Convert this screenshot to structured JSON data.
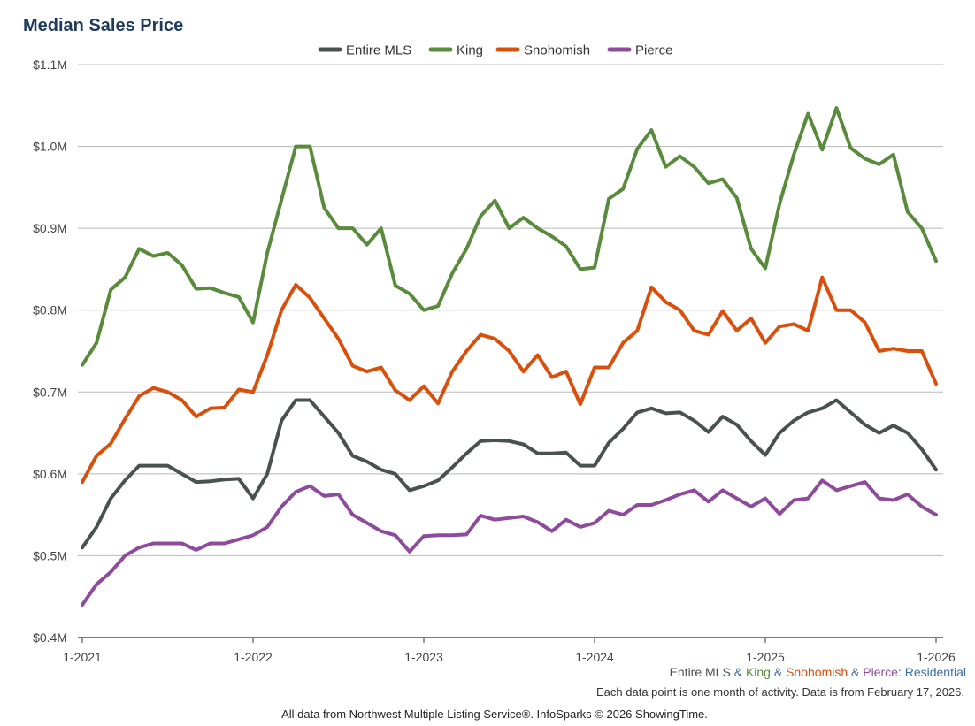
{
  "chart_data": {
    "type": "line",
    "title": "Median Sales Price",
    "xlabel": "",
    "ylabel": "",
    "ylim": [
      400000,
      1100000
    ],
    "y_ticks": [
      {
        "value": 1100000,
        "label": "$1.1M"
      },
      {
        "value": 1000000,
        "label": "$1.0M"
      },
      {
        "value": 900000,
        "label": "$0.9M"
      },
      {
        "value": 800000,
        "label": "$0.8M"
      },
      {
        "value": 700000,
        "label": "$0.7M"
      },
      {
        "value": 600000,
        "label": "$0.6M"
      },
      {
        "value": 500000,
        "label": "$0.5M"
      },
      {
        "value": 400000,
        "label": "$0.4M"
      }
    ],
    "x_ticks": [
      {
        "index": 0,
        "label": "1-2021"
      },
      {
        "index": 12,
        "label": "1-2022"
      },
      {
        "index": 24,
        "label": "1-2023"
      },
      {
        "index": 36,
        "label": "1-2024"
      },
      {
        "index": 48,
        "label": "1-2025"
      },
      {
        "index": 60,
        "label": "1-2026"
      }
    ],
    "months": 61,
    "legend_position": "top-center",
    "series": [
      {
        "name": "Entire MLS",
        "color": "#4a524f",
        "values": [
          510000,
          535000,
          570000,
          592000,
          610000,
          610000,
          610000,
          600000,
          590000,
          591000,
          593000,
          594000,
          570000,
          600000,
          665000,
          690000,
          690000,
          670000,
          650000,
          622000,
          615000,
          605000,
          600000,
          580000,
          585000,
          592000,
          608000,
          625000,
          640000,
          641000,
          640000,
          636000,
          625000,
          625000,
          626000,
          610000,
          610000,
          638000,
          655000,
          675000,
          680000,
          674000,
          675000,
          665000,
          651000,
          670000,
          660000,
          640000,
          623000,
          650000,
          665000,
          675000,
          680000,
          690000,
          675000,
          660000,
          650000,
          659000,
          650000,
          630000,
          605000
        ]
      },
      {
        "name": "King",
        "color": "#5a8a3c",
        "values": [
          733000,
          760000,
          825000,
          840000,
          875000,
          866000,
          870000,
          855000,
          826000,
          827000,
          821000,
          816000,
          785000,
          870000,
          935000,
          1000000,
          1000000,
          925000,
          900000,
          900000,
          880000,
          900000,
          830000,
          820000,
          800000,
          805000,
          845000,
          875000,
          915000,
          934000,
          900000,
          913000,
          900000,
          890000,
          878000,
          850000,
          852000,
          936000,
          948000,
          997000,
          1020000,
          975000,
          988000,
          975000,
          955000,
          960000,
          937000,
          875000,
          851000,
          930000,
          990000,
          1040000,
          996000,
          1047000,
          998000,
          985000,
          978000,
          990000,
          920000,
          900000,
          860000
        ]
      },
      {
        "name": "Snohomish",
        "color": "#d94f0c",
        "values": [
          590000,
          622000,
          637000,
          667000,
          695000,
          705000,
          700000,
          690000,
          670000,
          680000,
          681000,
          703000,
          700000,
          745000,
          800000,
          831000,
          815000,
          790000,
          765000,
          732000,
          725000,
          730000,
          702000,
          690000,
          707000,
          686000,
          725000,
          750000,
          770000,
          765000,
          750000,
          725000,
          745000,
          718000,
          725000,
          685000,
          730000,
          730000,
          760000,
          775000,
          828000,
          810000,
          800000,
          775000,
          770000,
          799000,
          775000,
          790000,
          760000,
          780000,
          783000,
          775000,
          840000,
          800000,
          800000,
          785000,
          750000,
          753000,
          750000,
          750000,
          710000
        ]
      },
      {
        "name": "Pierce",
        "color": "#8e4b9b",
        "values": [
          440000,
          465000,
          480000,
          500000,
          510000,
          515000,
          515000,
          515000,
          507000,
          515000,
          515000,
          520000,
          525000,
          535000,
          560000,
          578000,
          585000,
          573000,
          575000,
          550000,
          540000,
          530000,
          525000,
          505000,
          524000,
          525000,
          525000,
          526000,
          549000,
          544000,
          546000,
          548000,
          541000,
          530000,
          544000,
          535000,
          540000,
          555000,
          550000,
          562000,
          562000,
          568000,
          575000,
          580000,
          566000,
          580000,
          570000,
          560000,
          570000,
          551000,
          568000,
          570000,
          592000,
          580000,
          585000,
          590000,
          570000,
          568000,
          575000,
          560000,
          550000
        ]
      }
    ]
  },
  "caption": {
    "parts": [
      {
        "text": "Entire MLS",
        "color": "#4a524f"
      },
      {
        "text": " & ",
        "color": "#3a6ea5"
      },
      {
        "text": "King",
        "color": "#5a8a3c"
      },
      {
        "text": " & ",
        "color": "#3a6ea5"
      },
      {
        "text": "Snohomish",
        "color": "#d94f0c"
      },
      {
        "text": " & ",
        "color": "#3a6ea5"
      },
      {
        "text": "Pierce",
        "color": "#8e4b9b"
      },
      {
        "text": ": Residential",
        "color": "#3a6ea5"
      }
    ]
  },
  "note": "Each data point is one month of activity. Data is from February 17, 2026.",
  "credit": "All data from Northwest Multiple Listing Service®. InfoSparks © 2026 ShowingTime."
}
